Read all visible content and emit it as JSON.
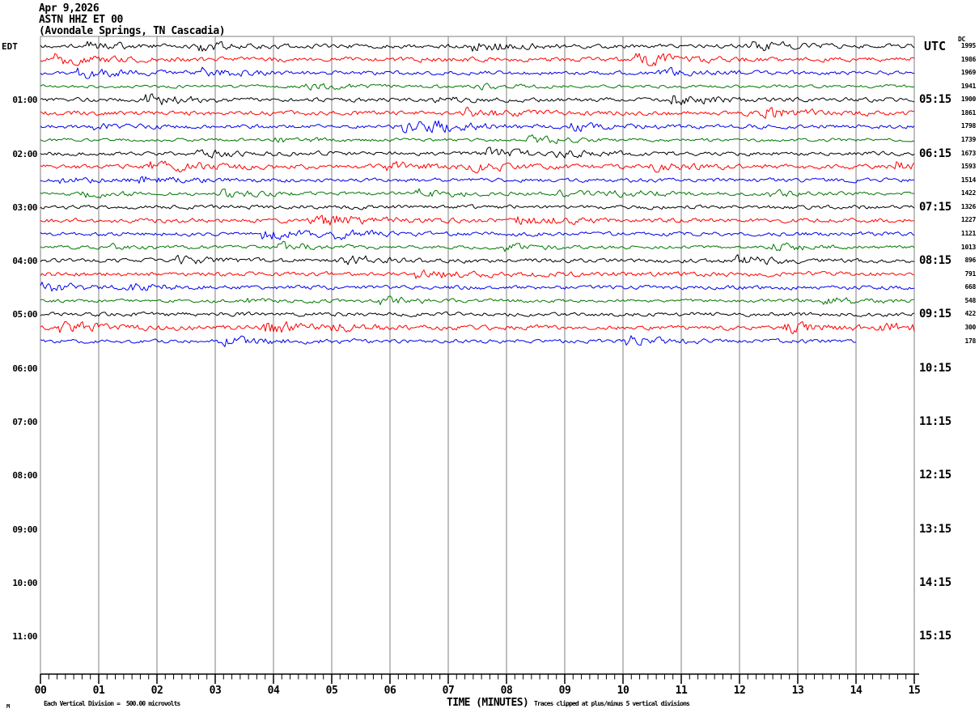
{
  "header": {
    "lines": [
      "Apr 9,2026",
      "ASTN HHZ ET 00",
      "(Avondale Springs, TN Cascadia)"
    ]
  },
  "axes": {
    "left_header": "EDT",
    "right_header": "UTC",
    "dc_header": "DC",
    "left_hour_labels": [
      "01:00",
      "02:00",
      "03:00",
      "04:00",
      "05:00",
      "06:00",
      "07:00",
      "08:00",
      "09:00",
      "10:00",
      "11:00"
    ],
    "right_hour_labels": [
      "05:15",
      "06:15",
      "07:15",
      "08:15",
      "09:15",
      "10:15",
      "11:15",
      "12:15",
      "13:15",
      "14:15",
      "15:15"
    ],
    "x_tick_labels": [
      "00",
      "01",
      "02",
      "03",
      "04",
      "05",
      "06",
      "07",
      "08",
      "09",
      "10",
      "11",
      "12",
      "13",
      "14",
      "15"
    ],
    "x_axis_title": "TIME (MINUTES)"
  },
  "footer": {
    "marker": "M",
    "scale_note": "Each Vertical Division =  500.00 microvolts",
    "clip_note": "Traces clipped at plus/minus 5 vertical divisions"
  },
  "colors": {
    "black": "#000000",
    "red": "#ff0000",
    "blue": "#0000ee",
    "green": "#007700",
    "grid": "#7f7f7f",
    "axis": "#000000",
    "background": "#ffffff"
  },
  "chart_data": {
    "type": "line",
    "title": "ASTN HHZ ET 00 helicorder, Apr 9,2026 (Avondale Springs, TN Cascadia)",
    "xlabel": "TIME (MINUTES)",
    "x_range_minutes": [
      0,
      15
    ],
    "minutes_per_row": 15,
    "rows_per_hour": 4,
    "grid": "vertical minute lines",
    "noise_amplitude_divisions": 0.5,
    "clip_divisions": 5,
    "seed": 20260409,
    "traces": [
      {
        "edt_start": "00:00",
        "color": "black",
        "dc": 1995,
        "end_minute": 15
      },
      {
        "edt_start": "00:15",
        "color": "red",
        "dc": 1986,
        "end_minute": 15
      },
      {
        "edt_start": "00:30",
        "color": "blue",
        "dc": 1969,
        "end_minute": 15
      },
      {
        "edt_start": "00:45",
        "color": "green",
        "dc": 1941,
        "end_minute": 15
      },
      {
        "edt_start": "01:00",
        "color": "black",
        "dc": 1900,
        "end_minute": 15
      },
      {
        "edt_start": "01:15",
        "color": "red",
        "dc": 1861,
        "end_minute": 15
      },
      {
        "edt_start": "01:30",
        "color": "blue",
        "dc": 1798,
        "end_minute": 15
      },
      {
        "edt_start": "01:45",
        "color": "green",
        "dc": 1739,
        "end_minute": 15
      },
      {
        "edt_start": "02:00",
        "color": "black",
        "dc": 1673,
        "end_minute": 15
      },
      {
        "edt_start": "02:15",
        "color": "red",
        "dc": 1593,
        "end_minute": 15
      },
      {
        "edt_start": "02:30",
        "color": "blue",
        "dc": 1514,
        "end_minute": 15
      },
      {
        "edt_start": "02:45",
        "color": "green",
        "dc": 1422,
        "end_minute": 15
      },
      {
        "edt_start": "03:00",
        "color": "black",
        "dc": 1326,
        "end_minute": 15
      },
      {
        "edt_start": "03:15",
        "color": "red",
        "dc": 1227,
        "end_minute": 15
      },
      {
        "edt_start": "03:30",
        "color": "blue",
        "dc": 1121,
        "end_minute": 15
      },
      {
        "edt_start": "03:45",
        "color": "green",
        "dc": 1013,
        "end_minute": 15
      },
      {
        "edt_start": "04:00",
        "color": "black",
        "dc": 896,
        "end_minute": 15
      },
      {
        "edt_start": "04:15",
        "color": "red",
        "dc": 791,
        "end_minute": 15
      },
      {
        "edt_start": "04:30",
        "color": "blue",
        "dc": 668,
        "end_minute": 15
      },
      {
        "edt_start": "04:45",
        "color": "green",
        "dc": 548,
        "end_minute": 15
      },
      {
        "edt_start": "05:00",
        "color": "black",
        "dc": 422,
        "end_minute": 15
      },
      {
        "edt_start": "05:15",
        "color": "red",
        "dc": 300,
        "end_minute": 15
      },
      {
        "edt_start": "05:30",
        "color": "blue",
        "dc": 178,
        "end_minute": 14
      }
    ]
  }
}
